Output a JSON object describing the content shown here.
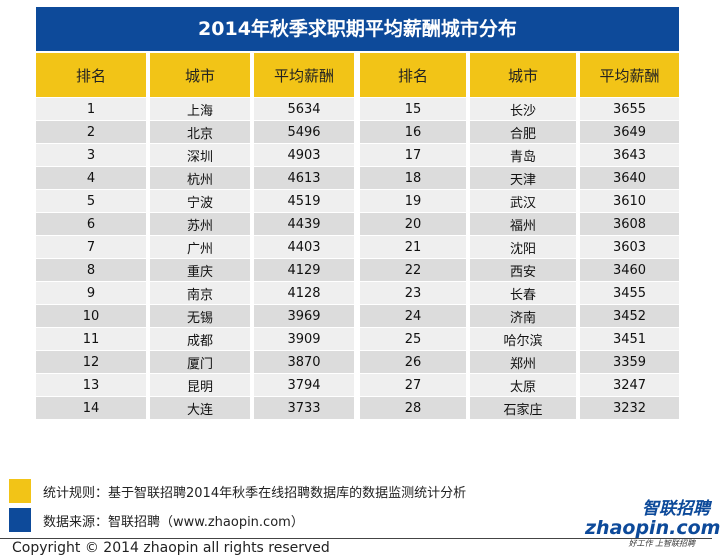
{
  "title": "2014年秋季求职期平均薪酬城市分布",
  "headers": [
    "排名",
    "城市",
    "平均薪酬",
    "排名",
    "城市",
    "平均薪酬"
  ],
  "rows": [
    [
      1,
      "上海",
      5634,
      15,
      "长沙",
      3655
    ],
    [
      2,
      "北京",
      5496,
      16,
      "合肥",
      3649
    ],
    [
      3,
      "深圳",
      4903,
      17,
      "青岛",
      3643
    ],
    [
      4,
      "杭州",
      4613,
      18,
      "天津",
      3640
    ],
    [
      5,
      "宁波",
      4519,
      19,
      "武汉",
      3610
    ],
    [
      6,
      "苏州",
      4439,
      20,
      "福州",
      3608
    ],
    [
      7,
      "广州",
      4403,
      21,
      "沈阳",
      3603
    ],
    [
      8,
      "重庆",
      4129,
      22,
      "西安",
      3460
    ],
    [
      9,
      "南京",
      4128,
      23,
      "长春",
      3455
    ],
    [
      10,
      "无锡",
      3969,
      24,
      "济南",
      3452
    ],
    [
      11,
      "成都",
      3909,
      25,
      "哈尔滨",
      3451
    ],
    [
      12,
      "厦门",
      3870,
      26,
      "郑州",
      3359
    ],
    [
      13,
      "昆明",
      3794,
      27,
      "太原",
      3247
    ],
    [
      14,
      "大连",
      3733,
      28,
      "石家庄",
      3232
    ]
  ],
  "legend": [
    {
      "color": "#f2c417",
      "text": "统计规则：基于智联招聘2014年秋季在线招聘数据库的数据监测统计分析"
    },
    {
      "color": "#0d4a9a",
      "text": "数据来源：智联招聘（www.zhaopin.com）"
    }
  ],
  "logo": {
    "cn": "智联招聘",
    "en": "zhaopin.com",
    "slogan": "好工作 上智联招聘"
  },
  "copyright": "Copyright  ©  2014 zhaopin all rights reserved"
}
